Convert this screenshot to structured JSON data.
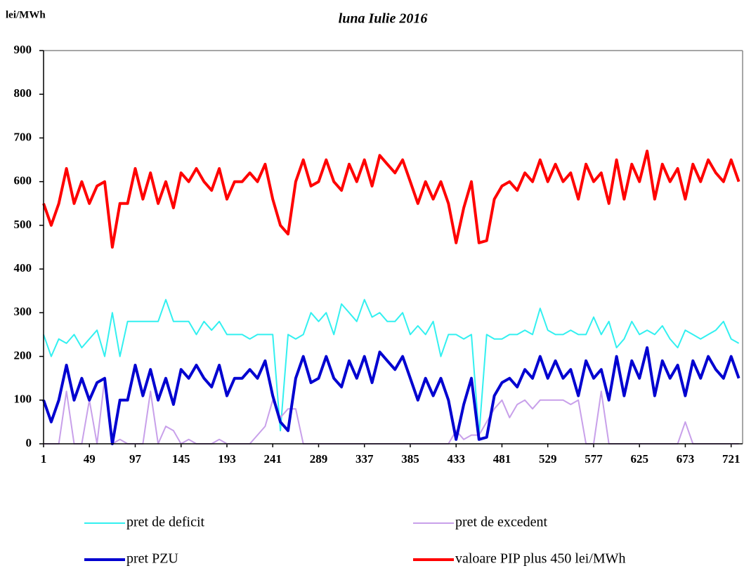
{
  "chart_data": {
    "type": "line",
    "title": "luna  Iulie 2016",
    "y_label": "lei/MWh",
    "x": [
      1,
      9,
      17,
      25,
      33,
      41,
      49,
      57,
      65,
      73,
      81,
      89,
      97,
      105,
      113,
      121,
      129,
      137,
      145,
      153,
      161,
      169,
      177,
      185,
      193,
      201,
      209,
      217,
      225,
      233,
      241,
      249,
      257,
      265,
      273,
      281,
      289,
      297,
      305,
      313,
      321,
      329,
      337,
      345,
      353,
      361,
      369,
      377,
      385,
      393,
      401,
      409,
      417,
      425,
      433,
      441,
      449,
      457,
      465,
      473,
      481,
      489,
      497,
      505,
      513,
      521,
      529,
      537,
      545,
      553,
      561,
      569,
      577,
      585,
      593,
      601,
      609,
      617,
      625,
      633,
      641,
      649,
      657,
      665,
      673,
      681,
      689,
      697,
      705,
      713,
      721,
      729
    ],
    "xlim": [
      1,
      733
    ],
    "xticks": [
      1,
      49,
      97,
      145,
      193,
      241,
      289,
      337,
      385,
      433,
      481,
      529,
      577,
      625,
      673,
      721
    ],
    "ylim": [
      0,
      900
    ],
    "yticks": [
      0,
      100,
      200,
      300,
      400,
      500,
      600,
      700,
      800,
      900
    ],
    "series": [
      {
        "name": "pret de deficit",
        "color": "#33f0f0",
        "width": 2,
        "values": [
          250,
          200,
          240,
          230,
          250,
          220,
          240,
          260,
          200,
          300,
          200,
          280,
          280,
          280,
          280,
          280,
          330,
          280,
          280,
          280,
          250,
          280,
          260,
          280,
          250,
          250,
          250,
          240,
          250,
          250,
          250,
          30,
          250,
          240,
          250,
          300,
          280,
          300,
          250,
          320,
          300,
          280,
          330,
          290,
          300,
          280,
          280,
          300,
          250,
          270,
          250,
          280,
          200,
          250,
          250,
          240,
          250,
          20,
          250,
          240,
          240,
          250,
          250,
          260,
          250,
          310,
          260,
          250,
          250,
          260,
          250,
          250,
          290,
          250,
          280,
          220,
          240,
          280,
          250,
          260,
          250,
          270,
          240,
          220,
          260,
          250,
          240,
          250,
          260,
          280,
          240,
          230
        ]
      },
      {
        "name": "pret de excedent",
        "color": "#c8a0ea",
        "width": 2,
        "values": [
          0,
          0,
          0,
          120,
          0,
          0,
          100,
          0,
          150,
          0,
          10,
          0,
          0,
          0,
          120,
          0,
          40,
          30,
          0,
          10,
          0,
          0,
          0,
          10,
          0,
          0,
          0,
          0,
          20,
          40,
          100,
          60,
          80,
          80,
          0,
          0,
          0,
          0,
          0,
          0,
          0,
          0,
          0,
          0,
          0,
          0,
          0,
          0,
          0,
          0,
          0,
          0,
          0,
          0,
          30,
          10,
          20,
          20,
          50,
          80,
          100,
          60,
          90,
          100,
          80,
          100,
          100,
          100,
          100,
          90,
          100,
          0,
          0,
          120,
          0,
          0,
          0,
          0,
          0,
          0,
          0,
          0,
          0,
          0,
          50,
          0,
          0,
          0,
          0,
          0,
          0,
          0
        ]
      },
      {
        "name": "pret PZU",
        "color": "#0000d0",
        "width": 4,
        "values": [
          100,
          50,
          100,
          180,
          100,
          150,
          100,
          140,
          150,
          0,
          100,
          100,
          180,
          110,
          170,
          100,
          150,
          90,
          170,
          150,
          180,
          150,
          130,
          180,
          110,
          150,
          150,
          170,
          150,
          190,
          110,
          50,
          30,
          150,
          200,
          140,
          150,
          200,
          150,
          130,
          190,
          150,
          200,
          140,
          210,
          190,
          170,
          200,
          150,
          100,
          150,
          110,
          150,
          100,
          10,
          90,
          150,
          10,
          15,
          110,
          140,
          150,
          130,
          170,
          150,
          200,
          150,
          190,
          150,
          170,
          110,
          190,
          150,
          170,
          100,
          200,
          110,
          190,
          150,
          220,
          110,
          190,
          150,
          180,
          110,
          190,
          150,
          200,
          170,
          150,
          200,
          150
        ]
      },
      {
        "name": "valoare PIP plus 450 lei/MWh",
        "color": "#ff0000",
        "width": 4,
        "values": [
          550,
          500,
          550,
          630,
          550,
          600,
          550,
          590,
          600,
          450,
          550,
          550,
          630,
          560,
          620,
          550,
          600,
          540,
          620,
          600,
          630,
          600,
          580,
          630,
          560,
          600,
          600,
          620,
          600,
          640,
          560,
          500,
          480,
          600,
          650,
          590,
          600,
          650,
          600,
          580,
          640,
          600,
          650,
          590,
          660,
          640,
          620,
          650,
          600,
          550,
          600,
          560,
          600,
          550,
          460,
          540,
          600,
          460,
          465,
          560,
          590,
          600,
          580,
          620,
          600,
          650,
          600,
          640,
          600,
          620,
          560,
          640,
          600,
          620,
          550,
          650,
          560,
          640,
          600,
          670,
          560,
          640,
          600,
          630,
          560,
          640,
          600,
          650,
          620,
          600,
          650,
          600
        ]
      }
    ]
  }
}
